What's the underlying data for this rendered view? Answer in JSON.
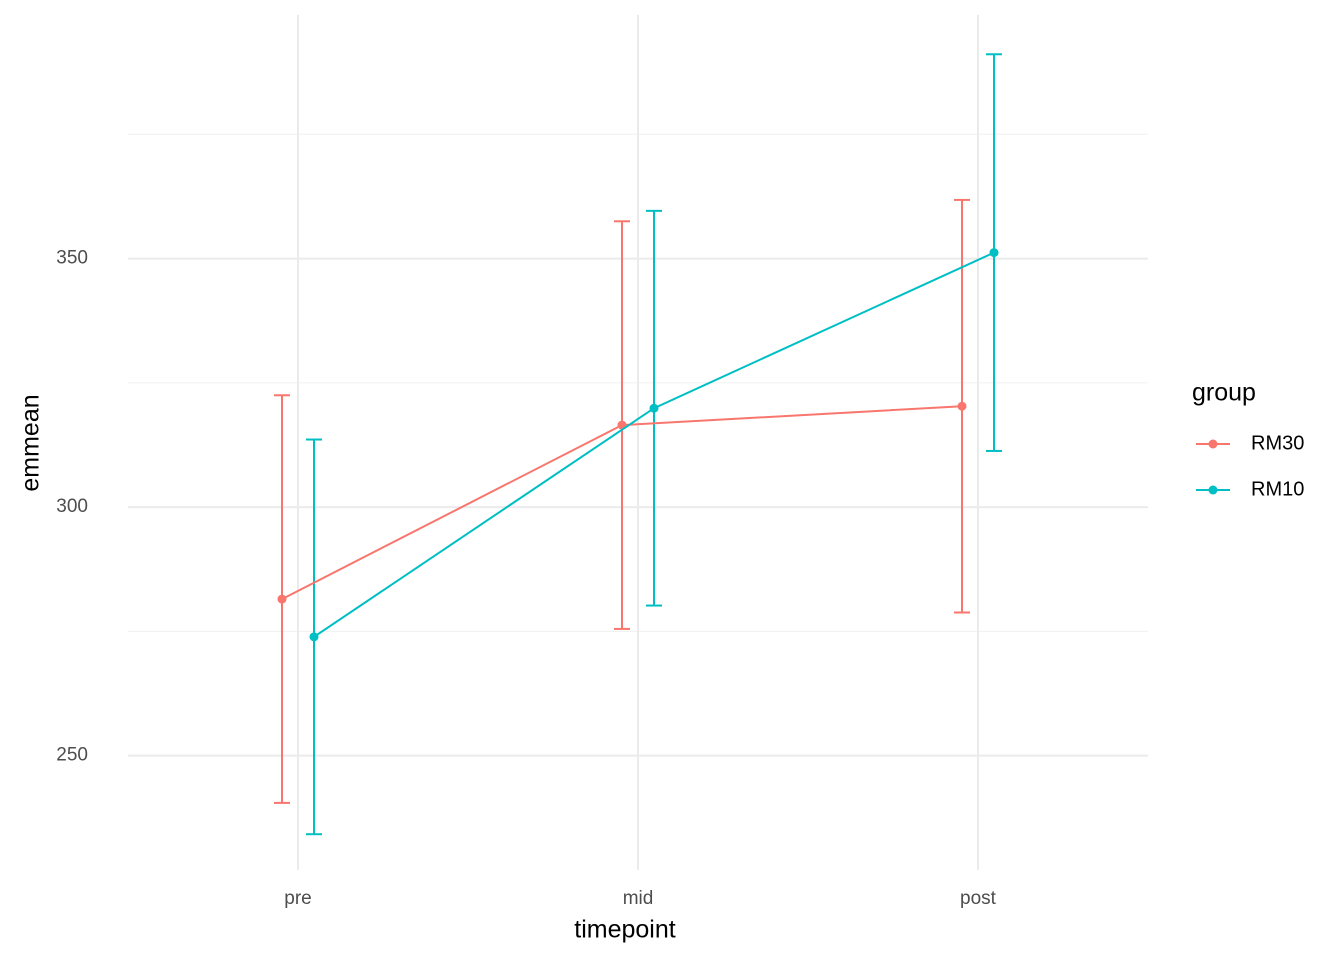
{
  "chart_data": {
    "type": "line",
    "x_label": "timepoint",
    "y_label": "emmean",
    "categories": [
      "pre",
      "mid",
      "post"
    ],
    "legend_title": "group",
    "legend": "right",
    "series": [
      {
        "name": "RM30",
        "color": "#F8766D",
        "values": [
          281.5,
          316.5,
          320.3
        ],
        "errors": [
          41,
          41,
          41.5
        ]
      },
      {
        "name": "RM10",
        "color": "#00BFC4",
        "values": [
          273.9,
          319.9,
          351.2
        ],
        "errors": [
          39.7,
          39.7,
          39.9
        ]
      }
    ],
    "ylim": [
      227,
      399
    ],
    "yticks": [
      250,
      300,
      350
    ],
    "yminor": [
      275,
      325,
      375
    ],
    "grid": true
  }
}
